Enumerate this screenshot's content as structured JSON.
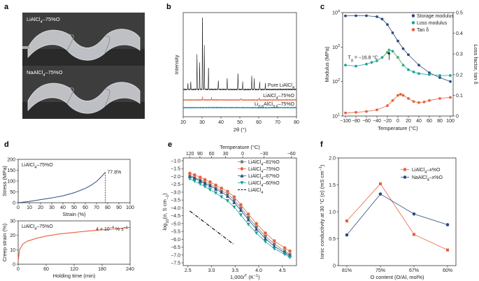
{
  "panel_letters": [
    "a",
    "b",
    "c",
    "d",
    "e",
    "f"
  ],
  "photos": [
    {
      "caption_main": "LiAlCl",
      "caption_sub": "4",
      "caption_tail": "–75%O"
    },
    {
      "caption_main": "NaAlCl",
      "caption_sub": "4",
      "caption_tail": "–75%O"
    }
  ],
  "chart_data": [
    {
      "panel": "b",
      "type": "line",
      "xlabel": "2θ (°)",
      "ylabel": "Intensity",
      "xlim": [
        20,
        80
      ],
      "xticks": [
        "20",
        "30",
        "40",
        "50",
        "60",
        "70",
        "80"
      ],
      "series": [
        {
          "name": "Pure LiAlCl4",
          "label_parts": [
            "Pure LiAlCl",
            "4",
            ""
          ],
          "color": "#222222",
          "peaks": [
            [
              22.5,
              0.08
            ],
            [
              24,
              0.1
            ],
            [
              27.3,
              0.45
            ],
            [
              28.7,
              0.35
            ],
            [
              30.2,
              1.0
            ],
            [
              31.2,
              0.55
            ],
            [
              33.4,
              0.3
            ],
            [
              38.6,
              0.12
            ],
            [
              43.3,
              0.15
            ],
            [
              49,
              0.22
            ],
            [
              51.5,
              0.1
            ],
            [
              56.3,
              0.18
            ],
            [
              57.6,
              0.14
            ],
            [
              60.5,
              0.1
            ],
            [
              63.5,
              0.08
            ]
          ]
        },
        {
          "name": "LiAlCl4–75%O",
          "label_parts": [
            "LiAlCl",
            "4",
            "–75%O"
          ],
          "color": "#e8603c",
          "peaks": [
            [
              30.3,
              0.12
            ],
            [
              35,
              0.1
            ],
            [
              50.5,
              0.06
            ],
            [
              60.2,
              0.08
            ]
          ]
        },
        {
          "name": "Li0.6AlCl3.6–75%O",
          "label_parts": [
            "Li",
            "0.6",
            "AlCl",
            "3.6",
            "–75%O"
          ],
          "color": "#1f7f9a",
          "peaks": []
        }
      ]
    },
    {
      "panel": "c",
      "type": "line",
      "xlabel": "Temperature (°C)",
      "ylabel": "Modulus (MPa)",
      "y2label": "Loss factor, tan δ",
      "xlim": [
        -100,
        100
      ],
      "xticks": [
        "−100",
        "−80",
        "−60",
        "−40",
        "−20",
        "0",
        "20",
        "40",
        "60",
        "80",
        "100"
      ],
      "yticks": [
        "10",
        "10",
        "10",
        "10"
      ],
      "yexp": [
        "1",
        "2",
        "3",
        "4"
      ],
      "y2ticks": [
        "0",
        "0.1",
        "0.2",
        "0.3",
        "0.4",
        "0.5"
      ],
      "annotation": "T",
      "annotation_sub": "g",
      "annotation_tail": " = −16.8 °C",
      "series": [
        {
          "name": "Storage modulus",
          "color": "#2b4a7e",
          "x": [
            -100,
            -80,
            -60,
            -40,
            -30,
            -20,
            -10,
            0,
            10,
            20,
            40,
            60,
            80,
            100
          ],
          "y": [
            8000,
            8100,
            8100,
            7600,
            6500,
            4500,
            2600,
            1500,
            900,
            600,
            300,
            180,
            130,
            100
          ]
        },
        {
          "name": "Loss modulus",
          "color": "#1aa39a",
          "x": [
            -100,
            -80,
            -60,
            -50,
            -40,
            -30,
            -20,
            -16.8,
            -10,
            0,
            10,
            20,
            30,
            40,
            60,
            80,
            100
          ],
          "y": [
            300,
            280,
            320,
            360,
            400,
            500,
            700,
            820,
            760,
            500,
            300,
            220,
            190,
            170,
            160,
            150,
            150
          ]
        },
        {
          "name": "Tan δ",
          "color": "#e8603c",
          "x": [
            -100,
            -80,
            -60,
            -40,
            -20,
            -10,
            0,
            5,
            10,
            20,
            30,
            40,
            50,
            60,
            80,
            100
          ],
          "y2": [
            0.015,
            0.018,
            0.022,
            0.03,
            0.05,
            0.075,
            0.1,
            0.105,
            0.1,
            0.085,
            0.07,
            0.065,
            0.068,
            0.075,
            0.085,
            0.09
          ]
        }
      ]
    },
    {
      "panel": "d-top",
      "type": "line",
      "title_parts": [
        "LiAlCl",
        "4",
        "–75%O"
      ],
      "xlabel": "Strain (%)",
      "ylabel": "Stress (MPa)",
      "xlim": [
        0,
        100
      ],
      "ylim": [
        0,
        200
      ],
      "xticks": [
        "0",
        "10",
        "20",
        "30",
        "40",
        "50",
        "60",
        "70",
        "80",
        "90",
        "100"
      ],
      "yticks": [
        "0",
        "50",
        "100",
        "150",
        "200"
      ],
      "annotation": "77.8%",
      "series": [
        {
          "color": "#2b4a7e",
          "x": [
            0,
            10,
            20,
            30,
            40,
            50,
            60,
            65,
            70,
            74,
            77.8
          ],
          "y": [
            0,
            6,
            14,
            22,
            32,
            46,
            66,
            80,
            98,
            118,
            140
          ]
        }
      ]
    },
    {
      "panel": "d-bottom",
      "type": "line",
      "title_parts": [
        "LiAlCl",
        "4",
        "–75%O"
      ],
      "xlabel": "Holding time (min)",
      "ylabel": "Creep strain (%)",
      "xlim": [
        0,
        240
      ],
      "ylim": [
        0,
        30
      ],
      "xticks": [
        "0",
        "60",
        "120",
        "180",
        "240"
      ],
      "yticks": [
        "0",
        "10",
        "20",
        "30"
      ],
      "annotation": "4 × 10",
      "annotation_exp": "−4",
      "annotation_tail": " % s",
      "annotation_exp2": "−1",
      "series": [
        {
          "color": "#e8603c",
          "x": [
            0,
            3,
            10,
            20,
            40,
            60,
            90,
            120,
            150,
            180,
            210,
            240
          ],
          "y": [
            2,
            10,
            14,
            16,
            18,
            19.5,
            21,
            22,
            23,
            23.8,
            24.5,
            25.5
          ]
        }
      ]
    },
    {
      "panel": "e",
      "type": "line",
      "xlabel_parts": [
        "1,000/",
        "T",
        " (K",
        "−1",
        ")"
      ],
      "ylabel_parts": [
        "log",
        "10",
        "(σ, S cm",
        "−1",
        ")"
      ],
      "x2label": "Temperature (°C)",
      "xlim": [
        2.4,
        4.8
      ],
      "ylim": [
        -7.5,
        -1
      ],
      "xticks": [
        "2.5",
        "3.0",
        "3.5",
        "4.0",
        "4.5"
      ],
      "x2ticks": [
        "120",
        "90",
        "60",
        "30",
        "0",
        "−30",
        "−60"
      ],
      "yticks": [
        "−1.0",
        "−1.5",
        "−2.0",
        "−2.5",
        "−3.0",
        "−3.5",
        "−4.0",
        "−4.5",
        "−5.0",
        "−5.5",
        "−6.0",
        "−6.5",
        "−7.0",
        "−7.5"
      ],
      "series": [
        {
          "name": "LiAlCl4–81%O",
          "label_parts": [
            "LiAlCl",
            "4",
            "–81%O"
          ],
          "color": "#777777",
          "marker": "square",
          "x": [
            2.54,
            2.64,
            2.76,
            2.86,
            2.97,
            3.09,
            3.21,
            3.34,
            3.48,
            3.62,
            3.78,
            3.95,
            4.14,
            4.33,
            4.55,
            4.66
          ],
          "y": [
            -1.95,
            -2.05,
            -2.2,
            -2.35,
            -2.5,
            -2.7,
            -2.9,
            -3.1,
            -3.5,
            -4.0,
            -4.6,
            -5.2,
            -5.8,
            -6.3,
            -6.75,
            -6.95
          ]
        },
        {
          "name": "LiAlCl4–75%O",
          "label_parts": [
            "LiAlCl",
            "4",
            "–75%O"
          ],
          "color": "#e8603c",
          "marker": "circle",
          "x": [
            2.54,
            2.64,
            2.76,
            2.86,
            2.97,
            3.09,
            3.21,
            3.34,
            3.48,
            3.62,
            3.78,
            3.95,
            4.14,
            4.33,
            4.55,
            4.66
          ],
          "y": [
            -1.8,
            -1.9,
            -2.05,
            -2.2,
            -2.35,
            -2.55,
            -2.75,
            -2.95,
            -3.3,
            -3.8,
            -4.4,
            -5.0,
            -5.6,
            -6.1,
            -6.55,
            -6.75
          ]
        },
        {
          "name": "LiAlCl4–67%O",
          "label_parts": [
            "LiAlCl",
            "4",
            "–67%O"
          ],
          "color": "#2b4a7e",
          "marker": "triangle",
          "x": [
            2.54,
            2.64,
            2.76,
            2.86,
            2.97,
            3.09,
            3.21,
            3.34,
            3.48,
            3.62,
            3.78,
            3.95,
            4.14,
            4.33,
            4.55,
            4.66
          ],
          "y": [
            -2.0,
            -2.12,
            -2.28,
            -2.44,
            -2.6,
            -2.8,
            -3.0,
            -3.25,
            -3.65,
            -4.15,
            -4.75,
            -5.35,
            -5.95,
            -6.45,
            -6.85,
            -7.05
          ]
        },
        {
          "name": "LiAlCl4–60%O",
          "label_parts": [
            "LiAlCl",
            "4",
            "–60%O"
          ],
          "color": "#1aa39a",
          "marker": "triangle-down",
          "x": [
            2.54,
            2.64,
            2.76,
            2.86,
            2.97,
            3.09,
            3.21,
            3.34,
            3.48,
            3.62,
            3.78,
            3.95,
            4.14,
            4.33,
            4.55,
            4.66
          ],
          "y": [
            -2.15,
            -2.3,
            -2.48,
            -2.65,
            -2.85,
            -3.05,
            -3.3,
            -3.55,
            -3.95,
            -4.45,
            -5.05,
            -5.6,
            -6.15,
            -6.6,
            -6.95,
            -7.15
          ]
        },
        {
          "name": "LiAlCl4",
          "label_parts": [
            "LiAlCl",
            "4",
            ""
          ],
          "color": "#111111",
          "dash": true,
          "x": [
            2.54,
            3.46
          ],
          "y": [
            -4.2,
            -6.3
          ]
        }
      ]
    },
    {
      "panel": "f",
      "type": "line",
      "xlabel": "O content (O/Al, mol%)",
      "ylabel_parts": [
        "Ionic conductivity at 30 °C (σ) (mS cm",
        "−1",
        ")"
      ],
      "categories": [
        "81%",
        "75%",
        "67%",
        "60%"
      ],
      "ylim": [
        0,
        2.0
      ],
      "yticks": [
        "0",
        "0.5",
        "1.0",
        "1.5",
        "2.0"
      ],
      "series": [
        {
          "name": "LiAlCl4–x%O",
          "label_parts": [
            "LiAlCl",
            "4",
            "–x%O"
          ],
          "color": "#e8603c",
          "marker": "square",
          "values": [
            0.83,
            1.52,
            0.58,
            0.29
          ]
        },
        {
          "name": "NaAlCl4–x%O",
          "label_parts": [
            "NaAlCl",
            "4",
            "–x%O"
          ],
          "color": "#2b4a7e",
          "marker": "circle",
          "values": [
            0.57,
            1.33,
            0.96,
            0.76
          ]
        }
      ]
    }
  ]
}
